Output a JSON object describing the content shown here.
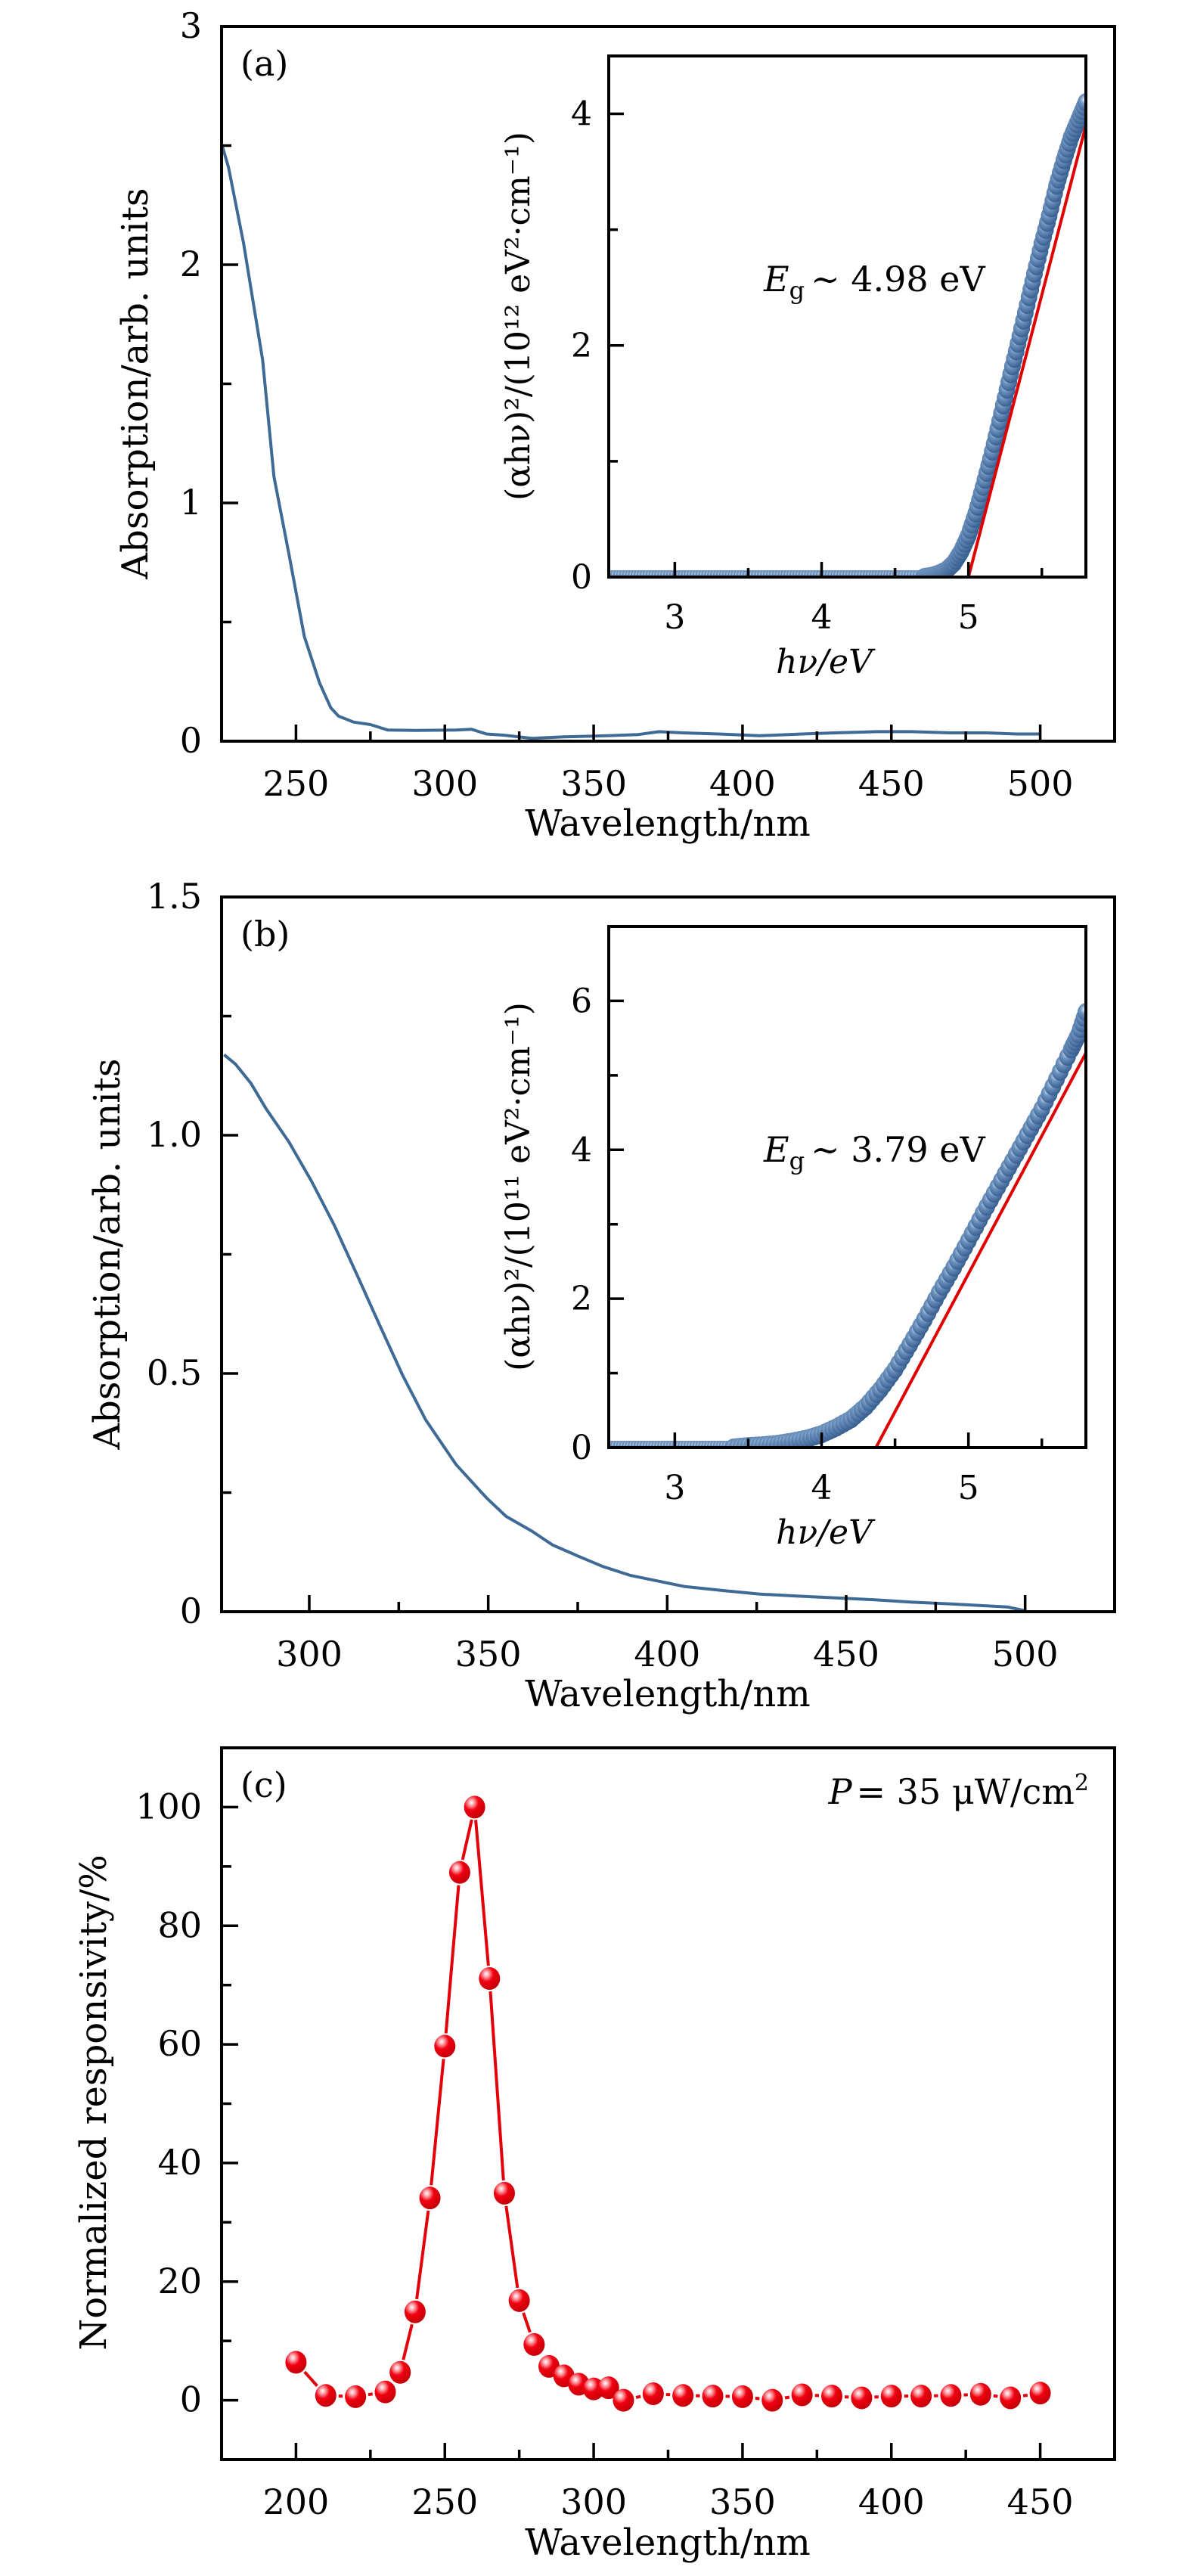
{
  "figure": {
    "panels": [
      "(a)",
      "(b)",
      "(c)"
    ]
  },
  "colors": {
    "absorption_line": "#3f6a96",
    "tauc_marker": "#3c6797",
    "fit_line": "#e00000",
    "responsivity": "#e4000a"
  },
  "chart_data": [
    {
      "id": "a-main",
      "type": "line",
      "panel_label": "(a)",
      "title": "",
      "xlabel": "Wavelength/nm",
      "ylabel": "Absorption/arb. units",
      "xlim": [
        225,
        525
      ],
      "ylim": [
        0,
        3
      ],
      "xticks": [
        250,
        300,
        350,
        400,
        450,
        500
      ],
      "xtick_labels": [
        "250",
        "300",
        "350",
        "400",
        "450",
        "500"
      ],
      "xminor": [
        275,
        325,
        375,
        425,
        475
      ],
      "yticks": [
        0,
        1,
        2,
        3
      ],
      "ytick_labels": [
        "0",
        "1",
        "2",
        "3"
      ],
      "yminor": [
        0.5,
        1.5,
        2.5
      ],
      "grid": false,
      "series": [
        {
          "name": "absorption",
          "x": [
            225.2,
            227.3,
            232.4,
            238.8,
            242.6,
            247.7,
            252.8,
            257.9,
            261.7,
            264.3,
            269.4,
            275,
            280.8,
            290,
            303.8,
            309,
            314,
            320,
            329.3,
            340,
            354.7,
            365,
            372,
            380,
            392,
            405.7,
            420,
            431,
            445,
            456.7,
            470,
            482,
            492,
            500
          ],
          "y": [
            2.5,
            2.41,
            2.09,
            1.6,
            1.11,
            0.78,
            0.44,
            0.245,
            0.14,
            0.105,
            0.08,
            0.07,
            0.047,
            0.045,
            0.047,
            0.05,
            0.03,
            0.025,
            0.012,
            0.018,
            0.023,
            0.028,
            0.04,
            0.035,
            0.03,
            0.023,
            0.03,
            0.035,
            0.04,
            0.04,
            0.035,
            0.035,
            0.03,
            0.03
          ]
        }
      ],
      "inset": {
        "type": "scatter",
        "xlabel": "hν/eV",
        "ylabel": "(αhν)²/(10¹² eV²·cm⁻¹)",
        "xlim": [
          2.55,
          5.8
        ],
        "ylim": [
          0,
          4.5
        ],
        "xticks": [
          3,
          4,
          5
        ],
        "xtick_labels": [
          "3",
          "4",
          "5"
        ],
        "xminor": [
          3.5,
          4.5,
          5.5
        ],
        "yticks": [
          0,
          2,
          4
        ],
        "ytick_labels": [
          "0",
          "2",
          "4"
        ],
        "yminor": [
          1,
          3
        ],
        "annotation": {
          "symbol": "E",
          "subscript": "g",
          "text": "∼ 4.98 eV"
        },
        "fit_line": {
          "x": [
            5.0,
            5.8
          ],
          "y": [
            0,
            3.9
          ]
        },
        "points": {
          "flat_until": 4.7,
          "x": [
            4.75,
            4.8,
            4.85,
            4.9,
            4.95,
            5.0,
            5.05,
            5.1,
            5.15,
            5.2,
            5.25,
            5.3,
            5.35,
            5.4,
            5.45,
            5.5,
            5.55,
            5.6,
            5.65,
            5.7,
            5.75,
            5.8
          ],
          "y": [
            0.01,
            0.03,
            0.06,
            0.12,
            0.22,
            0.36,
            0.55,
            0.78,
            1.02,
            1.28,
            1.55,
            1.82,
            2.08,
            2.35,
            2.62,
            2.88,
            3.12,
            3.38,
            3.6,
            3.8,
            3.95,
            4.1
          ]
        }
      }
    },
    {
      "id": "b-main",
      "type": "line",
      "panel_label": "(b)",
      "title": "",
      "xlabel": "Wavelength/nm",
      "ylabel": "Absorption/arb. units",
      "xlim": [
        275.5,
        525
      ],
      "ylim": [
        0,
        1.5
      ],
      "xticks": [
        300,
        350,
        400,
        450,
        500
      ],
      "xtick_labels": [
        "300",
        "350",
        "400",
        "450",
        "500"
      ],
      "xminor": [
        325,
        375,
        425,
        475
      ],
      "yticks": [
        0,
        0.5,
        1.0,
        1.5
      ],
      "ytick_labels": [
        "0",
        "0.5",
        "1.0",
        "1.5"
      ],
      "yminor": [
        0.25,
        0.75,
        1.25
      ],
      "grid": false,
      "series": [
        {
          "name": "absorption",
          "x": [
            276.2,
            279.4,
            283.7,
            287.9,
            294.3,
            300.6,
            307,
            313.4,
            319.7,
            326.1,
            332.5,
            341,
            349.5,
            355,
            362.2,
            368,
            375,
            382,
            389.8,
            397,
            404.7,
            415,
            425.9,
            436,
            447.1,
            458,
            468.4,
            480,
            489.6,
            495,
            500
          ],
          "y": [
            1.169,
            1.149,
            1.109,
            1.056,
            0.986,
            0.904,
            0.811,
            0.706,
            0.601,
            0.496,
            0.403,
            0.309,
            0.239,
            0.2,
            0.169,
            0.14,
            0.117,
            0.095,
            0.076,
            0.065,
            0.053,
            0.045,
            0.037,
            0.033,
            0.029,
            0.025,
            0.02,
            0.016,
            0.012,
            0.01,
            0.002
          ]
        }
      ],
      "inset": {
        "type": "scatter",
        "xlabel": "hν/eV",
        "ylabel": "(αhν)²/(10¹¹ eV²·cm⁻¹)",
        "xlim": [
          2.55,
          5.8
        ],
        "ylim": [
          0,
          7
        ],
        "xticks": [
          3,
          4,
          5
        ],
        "xtick_labels": [
          "3",
          "4",
          "5"
        ],
        "xminor": [
          3.5,
          4.5,
          5.5
        ],
        "yticks": [
          0,
          2,
          4,
          6
        ],
        "ytick_labels": [
          "0",
          "2",
          "4",
          "6"
        ],
        "yminor": [
          1,
          3,
          5
        ],
        "annotation": {
          "symbol": "E",
          "subscript": "g",
          "text": "∼ 3.79 eV"
        },
        "fit_line": {
          "x": [
            4.37,
            5.8
          ],
          "y": [
            0,
            5.3
          ]
        },
        "points": {
          "flat_until": 3.4,
          "x": [
            3.5,
            3.6,
            3.7,
            3.8,
            3.9,
            4.0,
            4.1,
            4.2,
            4.3,
            4.4,
            4.5,
            4.6,
            4.7,
            4.8,
            4.9,
            5.0,
            5.1,
            5.2,
            5.3,
            5.4,
            5.5,
            5.6,
            5.7,
            5.75,
            5.8
          ],
          "y": [
            0.02,
            0.03,
            0.05,
            0.08,
            0.12,
            0.18,
            0.27,
            0.38,
            0.55,
            0.78,
            1.05,
            1.38,
            1.72,
            2.08,
            2.42,
            2.78,
            3.15,
            3.5,
            3.85,
            4.2,
            4.55,
            4.95,
            5.35,
            5.55,
            5.85
          ]
        }
      }
    },
    {
      "id": "c-main",
      "type": "line",
      "panel_label": "(c)",
      "title": "",
      "xlabel": "Wavelength/nm",
      "ylabel": "Normalized responsivity/%",
      "xlim": [
        175,
        475
      ],
      "ylim": [
        -10,
        110
      ],
      "xticks": [
        200,
        250,
        300,
        350,
        400,
        450
      ],
      "xtick_labels": [
        "200",
        "250",
        "300",
        "350",
        "400",
        "450"
      ],
      "xminor": [
        225,
        275,
        325,
        375,
        425
      ],
      "yticks": [
        0,
        20,
        40,
        60,
        80,
        100
      ],
      "ytick_labels": [
        "0",
        "20",
        "40",
        "60",
        "80",
        "100"
      ],
      "yminor": [
        10,
        30,
        50,
        70,
        90
      ],
      "grid": false,
      "annotation": {
        "symbol": "P",
        "text": "= 35 μW/cm",
        "superscript": "2"
      },
      "series": [
        {
          "name": "normalized responsivity",
          "x": [
            200,
            210,
            220,
            230,
            235,
            240,
            245,
            250,
            255,
            260,
            265,
            270,
            275,
            280,
            285,
            290,
            295,
            300,
            305,
            310,
            320,
            330,
            340,
            350,
            360,
            370,
            380,
            390,
            400,
            410,
            420,
            430,
            440,
            450
          ],
          "y": [
            6.4,
            0.8,
            0.6,
            1.4,
            4.7,
            14.9,
            34.1,
            59.7,
            89.0,
            100,
            71.1,
            34.9,
            16.8,
            9.4,
            5.7,
            4.1,
            2.7,
            1.9,
            2.1,
            0,
            1.1,
            0.8,
            0.7,
            0.6,
            0,
            0.9,
            0.7,
            0.4,
            0.7,
            0.7,
            0.8,
            1.0,
            0.4,
            1.2
          ]
        }
      ]
    }
  ]
}
